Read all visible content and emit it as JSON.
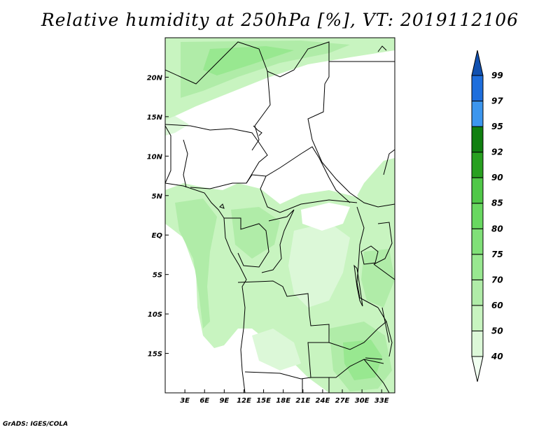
{
  "title": "Relative humidity at 250hPa [%], VT: 2019112106",
  "credit": "GrADS: IGES/COLA",
  "map": {
    "lon_range": [
      0,
      35
    ],
    "lat_range": [
      -20,
      25
    ],
    "x_ticks": [
      "3E",
      "6E",
      "9E",
      "12E",
      "15E",
      "18E",
      "21E",
      "24E",
      "27E",
      "30E",
      "33E"
    ],
    "y_ticks": [
      "20N",
      "15N",
      "10N",
      "5N",
      "EQ",
      "5S",
      "10S",
      "15S"
    ]
  },
  "colorbar": {
    "levels": [
      "40",
      "50",
      "60",
      "70",
      "75",
      "80",
      "85",
      "90",
      "92",
      "95",
      "97",
      "99"
    ],
    "colors": [
      "#f0fff0",
      "#dcf8d8",
      "#c8f4c0",
      "#b0eca8",
      "#98e890",
      "#80e078",
      "#68d860",
      "#50c848",
      "#28a020",
      "#108010",
      "#3c96ee",
      "#1e6edc",
      "#1050b0"
    ]
  }
}
